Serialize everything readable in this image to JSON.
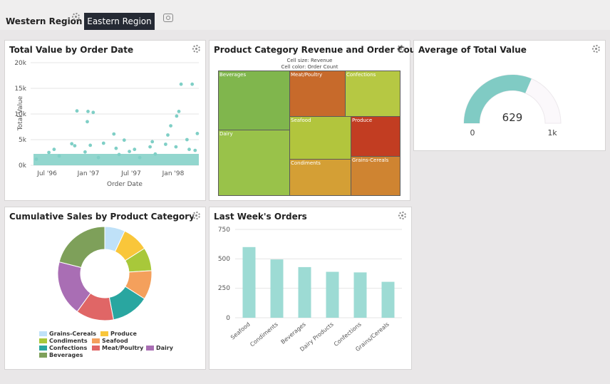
{
  "tabs": {
    "western": "Western Region",
    "eastern": "Eastern Region"
  },
  "panels": {
    "total_value": {
      "title": "Total Value by Order Date",
      "y_ticks": [
        "20k",
        "15k",
        "10k",
        "5k",
        "0k"
      ],
      "x_ticks": [
        "Jul '96",
        "Jan '97",
        "Jul '97",
        "Jan '98"
      ],
      "ylabel": "Total Value",
      "xlabel": "Order Date"
    },
    "treemap": {
      "title": "Product Category Revenue and Order Count",
      "note_size": "Cell size: Revenue",
      "note_color": "Cell color: Order Count"
    },
    "average": {
      "title": "Average of Total Value",
      "value": "629",
      "min": "0",
      "max": "1k"
    },
    "cumulative": {
      "title": "Cumulative Sales by Product Category"
    },
    "last_week": {
      "title": "Last Week's Orders",
      "y_ticks": [
        "750",
        "500",
        "250",
        "0"
      ]
    }
  },
  "chart_data": [
    {
      "type": "scatter",
      "title": "Total Value by Order Date",
      "xlabel": "Order Date",
      "ylabel": "Total Value",
      "ylim": [
        0,
        20000
      ],
      "xlim": [
        "1996-07",
        "1998-05"
      ],
      "color": "#7fcfc6",
      "points": [
        {
          "x": "1996-07",
          "y": 1200
        },
        {
          "x": "1996-08",
          "y": 2500
        },
        {
          "x": "1996-09",
          "y": 3100
        },
        {
          "x": "1996-10",
          "y": 1800
        },
        {
          "x": "1996-11",
          "y": 4200
        },
        {
          "x": "1996-12",
          "y": 10600
        },
        {
          "x": "1996-12",
          "y": 3800
        },
        {
          "x": "1997-01",
          "y": 8500
        },
        {
          "x": "1997-01",
          "y": 2600
        },
        {
          "x": "1997-02",
          "y": 3900
        },
        {
          "x": "1997-02",
          "y": 10500
        },
        {
          "x": "1997-02",
          "y": 10300
        },
        {
          "x": "1997-03",
          "y": 1500
        },
        {
          "x": "1997-04",
          "y": 4300
        },
        {
          "x": "1997-05",
          "y": 3300
        },
        {
          "x": "1997-05",
          "y": 6100
        },
        {
          "x": "1997-06",
          "y": 2100
        },
        {
          "x": "1997-06",
          "y": 4900
        },
        {
          "x": "1997-07",
          "y": 2700
        },
        {
          "x": "1997-08",
          "y": 3100
        },
        {
          "x": "1997-09",
          "y": 1500
        },
        {
          "x": "1997-10",
          "y": 4600
        },
        {
          "x": "1997-10",
          "y": 3600
        },
        {
          "x": "1997-11",
          "y": 2200
        },
        {
          "x": "1997-12",
          "y": 5900
        },
        {
          "x": "1997-12",
          "y": 4100
        },
        {
          "x": "1998-01",
          "y": 7700
        },
        {
          "x": "1998-01",
          "y": 3600
        },
        {
          "x": "1998-02",
          "y": 15800
        },
        {
          "x": "1998-02",
          "y": 10500
        },
        {
          "x": "1998-02",
          "y": 9600
        },
        {
          "x": "1998-03",
          "y": 3100
        },
        {
          "x": "1998-03",
          "y": 5000
        },
        {
          "x": "1998-04",
          "y": 15800
        },
        {
          "x": "1998-04",
          "y": 6200
        },
        {
          "x": "1998-04",
          "y": 2900
        }
      ]
    },
    {
      "type": "heatmap",
      "title": "Product Category Revenue and Order Count",
      "size_measure": "Revenue",
      "color_measure": "Order Count",
      "cells": [
        {
          "label": "Beverages",
          "color": "#80b64d"
        },
        {
          "label": "Dairy",
          "color": "#99c24a"
        },
        {
          "label": "Meat/Poultry",
          "color": "#c76a2b"
        },
        {
          "label": "Confections",
          "color": "#b6c843"
        },
        {
          "label": "Seafood",
          "color": "#b2c53d"
        },
        {
          "label": "Produce",
          "color": "#c23d22"
        },
        {
          "label": "Condiments",
          "color": "#d49f35"
        },
        {
          "label": "Grains-Cereals",
          "color": "#cf8431"
        }
      ]
    },
    {
      "type": "gauge",
      "title": "Average of Total Value",
      "value": 629,
      "min": 0,
      "max": 1000,
      "color": "#80cbc4"
    },
    {
      "type": "pie",
      "title": "Cumulative Sales by Product Category",
      "categories": [
        "Grains-Cereals",
        "Produce",
        "Condiments",
        "Seafood",
        "Confections",
        "Meat/Poultry",
        "Dairy",
        "Beverages"
      ],
      "values": [
        7,
        9,
        8,
        10,
        13,
        13,
        19,
        21
      ],
      "colors": [
        "#bfe1f8",
        "#f9c63a",
        "#a8c83a",
        "#f4a05c",
        "#29a6a0",
        "#e06666",
        "#a96eb4",
        "#7ea05a"
      ]
    },
    {
      "type": "bar",
      "title": "Last Week's Orders",
      "categories": [
        "Seafood",
        "Condiments",
        "Beverages",
        "Dairy Products",
        "Confections",
        "Grains/Cereals"
      ],
      "values": [
        600,
        495,
        430,
        390,
        385,
        305
      ],
      "ylim": [
        0,
        750
      ],
      "color": "#9ddbd4"
    }
  ]
}
